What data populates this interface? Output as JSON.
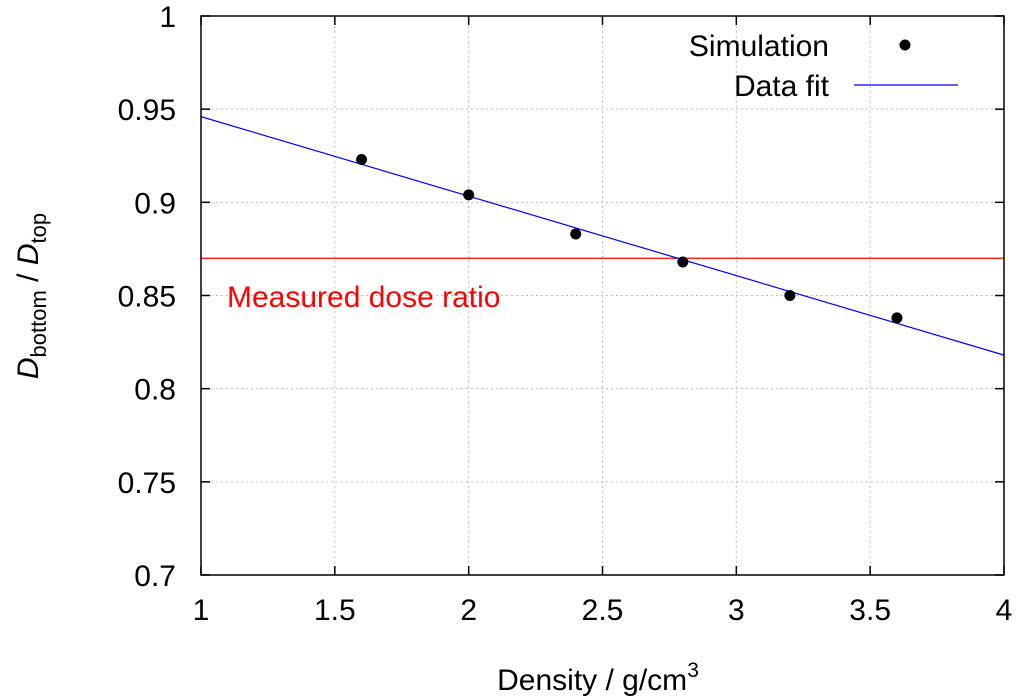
{
  "chart_data": {
    "type": "scatter",
    "xlabel": "Density / g/cm",
    "xlabel_sup": "3",
    "ylabel": {
      "main1": "D",
      "sub1": "bottom",
      "sep": " / ",
      "main2": "D",
      "sub2": "top"
    },
    "xlim": [
      1,
      4
    ],
    "ylim": [
      0.7,
      1.0
    ],
    "x_ticks": [
      1,
      1.5,
      2,
      2.5,
      3,
      3.5,
      4
    ],
    "x_tick_labels": [
      "1",
      "1.5",
      "2",
      "2.5",
      "3",
      "3.5",
      "4"
    ],
    "y_ticks": [
      0.7,
      0.75,
      0.8,
      0.85,
      0.9,
      0.95,
      1.0
    ],
    "y_tick_labels": [
      "0.7",
      "0.75",
      "0.8",
      "0.85",
      "0.9",
      "0.95",
      "1"
    ],
    "grid": true,
    "legend_position": "top-right",
    "series": [
      {
        "name": "Simulation",
        "kind": "points",
        "color": "#000000",
        "x": [
          1.6,
          2.0,
          2.4,
          2.8,
          3.2,
          3.6
        ],
        "y": [
          0.923,
          0.904,
          0.883,
          0.868,
          0.85,
          0.838
        ]
      },
      {
        "name": "Data fit",
        "kind": "line",
        "color": "#0000ff",
        "x": [
          1,
          4
        ],
        "y": [
          0.946,
          0.818
        ]
      }
    ],
    "reference_line": {
      "label": "Measured dose ratio",
      "y": 0.87,
      "color": "#ff0000"
    }
  }
}
